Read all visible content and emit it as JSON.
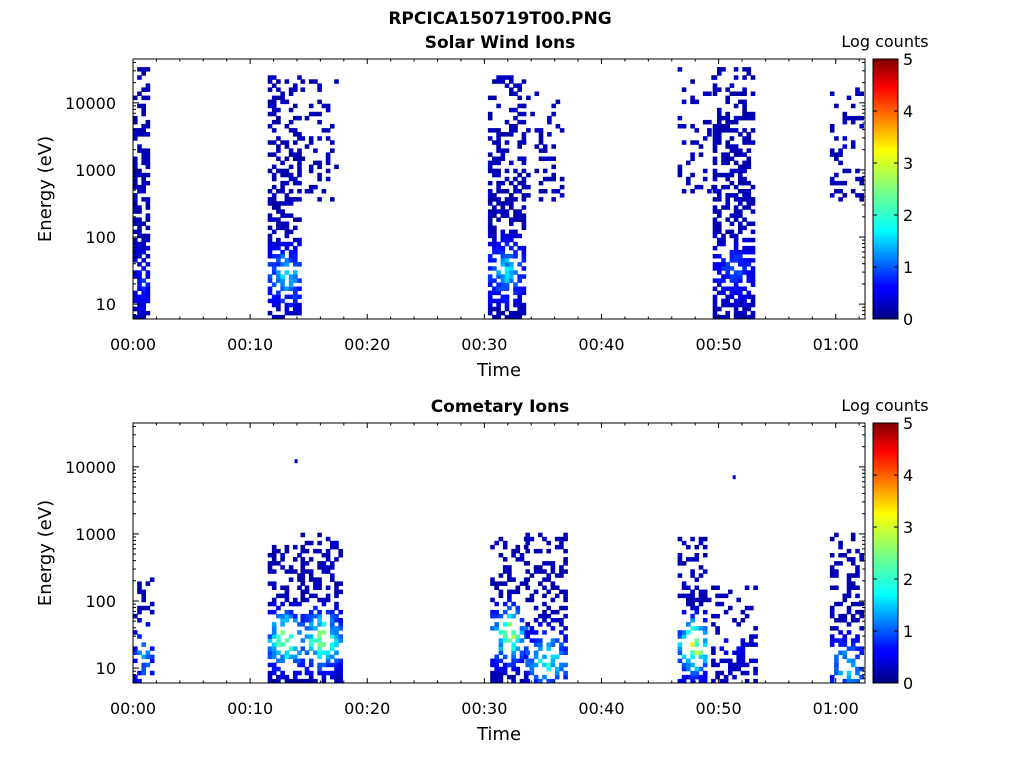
{
  "figure_title": "RPCICA150719T00.PNG",
  "chart_data": [
    {
      "type": "heatmap",
      "title": "Solar Wind Ions",
      "xlabel": "Time",
      "ylabel": "Energy (eV)",
      "x_ticks": [
        "00:00",
        "00:10",
        "00:20",
        "00:30",
        "00:40",
        "00:50",
        "01:00"
      ],
      "x_range_min": [
        0,
        62.5
      ],
      "y_scale": "log",
      "y_ticks": [
        10,
        100,
        1000,
        10000
      ],
      "y_tick_labels": [
        "10",
        "100",
        "1000",
        "10000"
      ],
      "y_range_ev": [
        6,
        45000
      ],
      "colorbar": {
        "label": "Log counts",
        "range": [
          0,
          5
        ],
        "ticks": [
          "0",
          "1",
          "2",
          "3",
          "4",
          "5"
        ],
        "colormap": "jet"
      },
      "bursts": [
        {
          "t_start_min": 0.0,
          "t_end_min": 1.4,
          "e_min_ev": 6,
          "e_max_ev": 30000,
          "density": 0.62,
          "peak_log_counts": 1.0,
          "peak_e_ev": 20
        },
        {
          "t_start_min": 11.5,
          "t_end_min": 14.3,
          "e_min_ev": 6,
          "e_max_ev": 25000,
          "density": 0.55,
          "peak_log_counts": 2.2,
          "peak_e_ev": 25
        },
        {
          "t_start_min": 14.3,
          "t_end_min": 17.5,
          "e_min_ev": 300,
          "e_max_ev": 20000,
          "density": 0.18,
          "peak_log_counts": 0.3,
          "peak_e_ev": 5000
        },
        {
          "t_start_min": 30.3,
          "t_end_min": 33.2,
          "e_min_ev": 6,
          "e_max_ev": 25000,
          "density": 0.55,
          "peak_log_counts": 2.0,
          "peak_e_ev": 30
        },
        {
          "t_start_min": 33.2,
          "t_end_min": 36.5,
          "e_min_ev": 300,
          "e_max_ev": 15000,
          "density": 0.2,
          "peak_log_counts": 0.3,
          "peak_e_ev": 5000
        },
        {
          "t_start_min": 46.5,
          "t_end_min": 49.5,
          "e_min_ev": 400,
          "e_max_ev": 30000,
          "density": 0.18,
          "peak_log_counts": 0.3,
          "peak_e_ev": 5000
        },
        {
          "t_start_min": 49.5,
          "t_end_min": 52.8,
          "e_min_ev": 6,
          "e_max_ev": 30000,
          "density": 0.55,
          "peak_log_counts": 1.2,
          "peak_e_ev": 30
        },
        {
          "t_start_min": 59.5,
          "t_end_min": 62.3,
          "e_min_ev": 300,
          "e_max_ev": 15000,
          "density": 0.25,
          "peak_log_counts": 0.3,
          "peak_e_ev": 3000
        }
      ]
    },
    {
      "type": "heatmap",
      "title": "Cometary Ions",
      "xlabel": "Time",
      "ylabel": "Energy (eV)",
      "x_ticks": [
        "00:00",
        "00:10",
        "00:20",
        "00:30",
        "00:40",
        "00:50",
        "01:00"
      ],
      "x_range_min": [
        0,
        62.5
      ],
      "y_scale": "log",
      "y_ticks": [
        10,
        100,
        1000,
        10000
      ],
      "y_tick_labels": [
        "10",
        "100",
        "1000",
        "10000"
      ],
      "y_range_ev": [
        6,
        45000
      ],
      "colorbar": {
        "label": "Log counts",
        "range": [
          0,
          5
        ],
        "ticks": [
          "0",
          "1",
          "2",
          "3",
          "4",
          "5"
        ],
        "colormap": "jet"
      },
      "bursts": [
        {
          "t_start_min": 0.0,
          "t_end_min": 1.5,
          "e_min_ev": 6,
          "e_max_ev": 200,
          "density": 0.3,
          "peak_log_counts": 1.8,
          "peak_e_ev": 15
        },
        {
          "t_start_min": 11.5,
          "t_end_min": 14.3,
          "e_min_ev": 6,
          "e_max_ev": 600,
          "density": 0.5,
          "peak_log_counts": 3.5,
          "peak_e_ev": 25
        },
        {
          "t_start_min": 14.3,
          "t_end_min": 17.6,
          "e_min_ev": 6,
          "e_max_ev": 1000,
          "density": 0.45,
          "peak_log_counts": 3.3,
          "peak_e_ev": 25
        },
        {
          "t_start_min": 30.5,
          "t_end_min": 33.5,
          "e_min_ev": 6,
          "e_max_ev": 800,
          "density": 0.4,
          "peak_log_counts": 3.2,
          "peak_e_ev": 30
        },
        {
          "t_start_min": 33.5,
          "t_end_min": 37.0,
          "e_min_ev": 6,
          "e_max_ev": 1000,
          "density": 0.45,
          "peak_log_counts": 2.6,
          "peak_e_ev": 12
        },
        {
          "t_start_min": 46.5,
          "t_end_min": 49.0,
          "e_min_ev": 6,
          "e_max_ev": 900,
          "density": 0.45,
          "peak_log_counts": 3.8,
          "peak_e_ev": 20
        },
        {
          "t_start_min": 49.0,
          "t_end_min": 53.0,
          "e_min_ev": 6,
          "e_max_ev": 150,
          "density": 0.3,
          "peak_log_counts": 0.5,
          "peak_e_ev": 20
        },
        {
          "t_start_min": 59.5,
          "t_end_min": 62.3,
          "e_min_ev": 6,
          "e_max_ev": 1000,
          "density": 0.4,
          "peak_log_counts": 2.2,
          "peak_e_ev": 10
        }
      ],
      "isolated_points": [
        {
          "t_min": 13.8,
          "e_ev": 13000
        },
        {
          "t_min": 51.2,
          "e_ev": 7500
        }
      ]
    }
  ]
}
